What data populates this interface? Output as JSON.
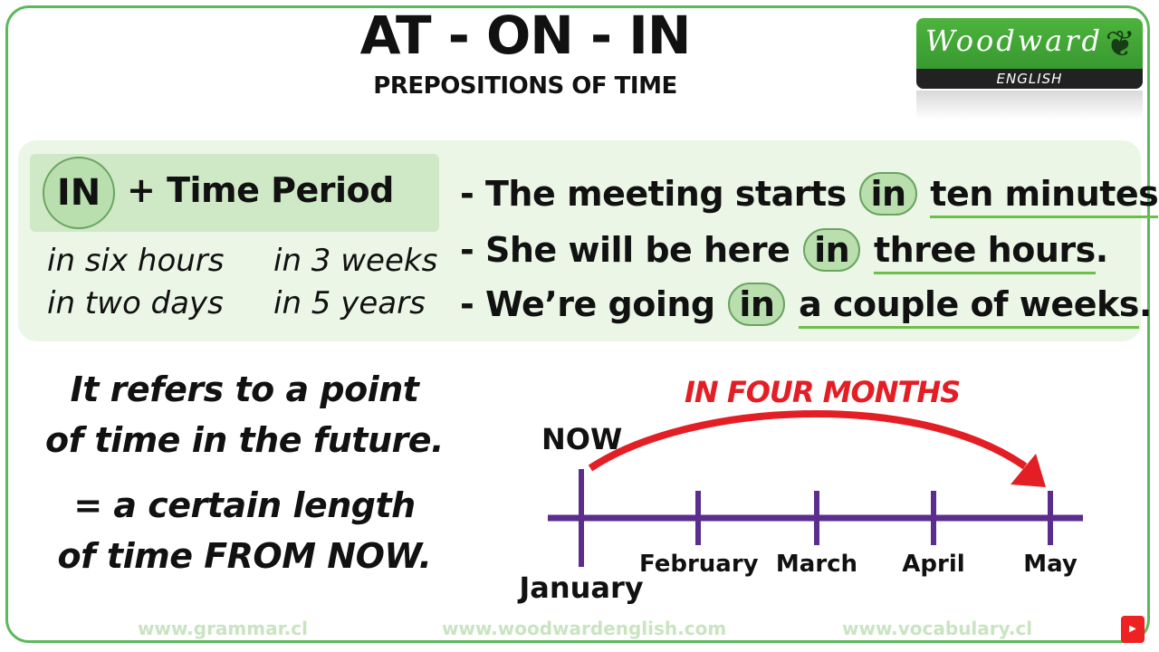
{
  "header": {
    "title": "AT - ON - IN",
    "subtitle": "PREPOSITIONS OF TIME"
  },
  "logo": {
    "brand": "Woodward",
    "tagline": "ENGLISH"
  },
  "rule": {
    "preposition": "IN",
    "label": "+ Time Period"
  },
  "examples": [
    "in six hours",
    "in 3 weeks",
    "in two days",
    "in 5 years"
  ],
  "sentences": [
    {
      "before": "- The meeting starts",
      "prep": "in",
      "phrase": "ten minutes",
      "end": "."
    },
    {
      "before": "- She will be here",
      "prep": "in",
      "phrase": "three hours",
      "end": "."
    },
    {
      "before": "- We’re going",
      "prep": "in",
      "phrase": "a couple of weeks",
      "end": "."
    }
  ],
  "description": {
    "line1": "It refers to a point",
    "line2": "of time in the future.",
    "line3": "= a certain length",
    "line4": "of time FROM NOW."
  },
  "timeline": {
    "caption": "IN FOUR MONTHS",
    "now": "NOW",
    "months": [
      "January",
      "February",
      "March",
      "April",
      "May"
    ],
    "line_color": "#5b2d8e",
    "arrow_color": "#e31e24"
  },
  "footer": {
    "left": "www.grammar.cl",
    "center": "www.woodwardenglish.com",
    "right": "www.vocabulary.cl",
    "badge": "SUBSCRIBE"
  }
}
